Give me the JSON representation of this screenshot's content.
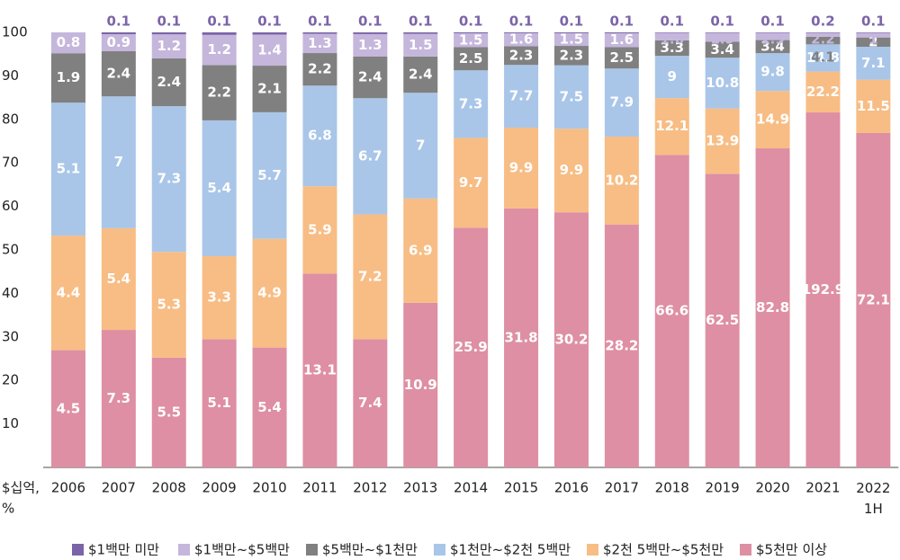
{
  "chart_data": {
    "type": "bar",
    "stacked": "percent",
    "y_label": [
      "$십억,",
      "%"
    ],
    "categories": [
      "2006",
      "2007",
      "2008",
      "2009",
      "2010",
      "2011",
      "2012",
      "2013",
      "2014",
      "2015",
      "2016",
      "2017",
      "2018",
      "2019",
      "2020",
      "2021",
      "2022 1H"
    ],
    "series": [
      {
        "name": "$5천만 이상",
        "color": "#de8fa3",
        "values": [
          4.5,
          7.3,
          5.5,
          5.1,
          5.4,
          13.1,
          7.4,
          10.9,
          25.9,
          31.8,
          30.2,
          28.2,
          66.6,
          62.5,
          82.8,
          192.9,
          72.1
        ]
      },
      {
        "name": "$2천 5백만~$5천만",
        "color": "#f7bd85",
        "values": [
          4.4,
          5.4,
          5.3,
          3.3,
          4.9,
          5.9,
          7.2,
          6.9,
          9.7,
          9.9,
          9.9,
          10.2,
          12.1,
          13.9,
          14.9,
          22.2,
          11.5
        ]
      },
      {
        "name": "$1천만~$2천 5백만",
        "color": "#a9c6e8",
        "values": [
          5.1,
          7.0,
          7.3,
          5.4,
          5.7,
          6.8,
          6.7,
          7.0,
          7.3,
          7.7,
          7.5,
          7.9,
          9.0,
          10.8,
          9.8,
          14.8,
          7.1
        ]
      },
      {
        "name": "$5백만~$1천만",
        "color": "#808080",
        "values": [
          1.9,
          2.4,
          2.4,
          2.2,
          2.1,
          2.2,
          2.4,
          2.4,
          2.5,
          2.3,
          2.3,
          2.5,
          3.3,
          3.4,
          3.4,
          4.1,
          2.0
        ]
      },
      {
        "name": "$1백만~$5백만",
        "color": "#c5b6dc",
        "values": [
          0.8,
          0.9,
          1.2,
          1.2,
          1.4,
          1.3,
          1.3,
          1.5,
          1.5,
          1.6,
          1.5,
          1.6,
          1.6,
          1.9,
          1.9,
          2.2,
          1.0
        ]
      },
      {
        "name": "$1백만 미만",
        "color": "#7b64a8",
        "values": [
          null,
          0.1,
          0.1,
          0.1,
          0.1,
          0.1,
          0.1,
          0.1,
          0.1,
          0.1,
          0.1,
          0.1,
          0.1,
          0.1,
          0.1,
          0.2,
          0.1
        ]
      }
    ],
    "ylim": [
      0,
      100
    ],
    "yticks": [
      10,
      20,
      30,
      40,
      50,
      60,
      70,
      80,
      90,
      100
    ],
    "grid": false,
    "legend": "bottom"
  }
}
